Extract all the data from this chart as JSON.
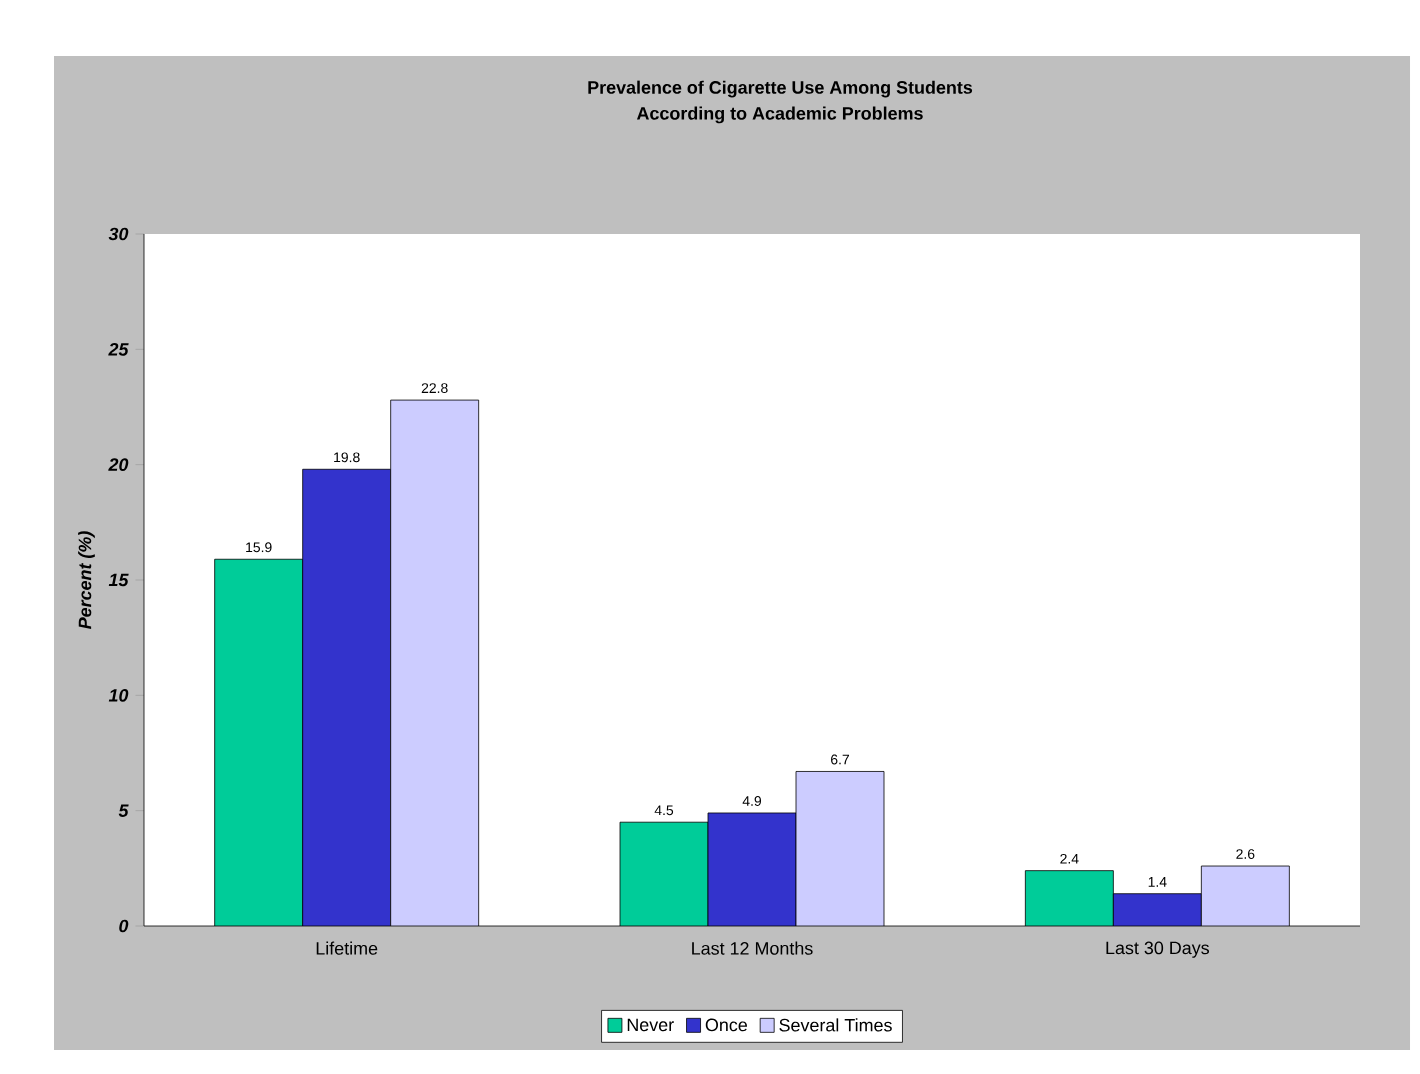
{
  "chart_data": {
    "type": "bar",
    "title": "Prevalence of Cigarette Use Among Students",
    "subtitle": "According to Academic Problems",
    "ylabel": "Percent (%)",
    "categories": [
      "Lifetime",
      "Last 12 Months",
      "Last 30 Days"
    ],
    "series": [
      {
        "name": "Never",
        "color": "#00cc99",
        "values": [
          15.9,
          4.5,
          2.4
        ]
      },
      {
        "name": "Once",
        "color": "#3333cc",
        "values": [
          19.8,
          4.9,
          1.4
        ]
      },
      {
        "name": "Several Times",
        "color": "#ccccff",
        "values": [
          22.8,
          6.7,
          2.6
        ]
      }
    ],
    "ylim": [
      0,
      30
    ],
    "yticks": [
      0,
      5,
      10,
      15,
      20,
      25,
      30
    ],
    "data_labels": true,
    "grid": false,
    "legend": "bottom"
  }
}
